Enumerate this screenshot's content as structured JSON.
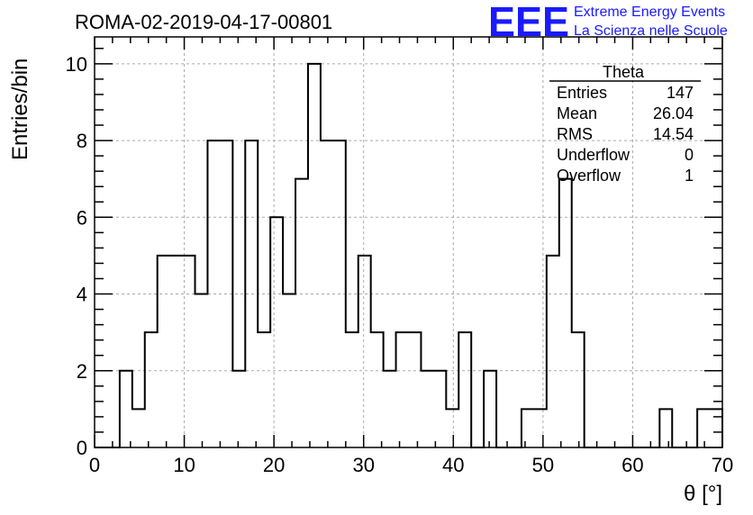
{
  "chart_data": {
    "type": "bar",
    "title": "ROMA-02-2019-04-17-00801",
    "xlabel": "θ [°]",
    "ylabel": "Entries/bin",
    "xlim": [
      0,
      70
    ],
    "ylim": [
      0,
      10.7
    ],
    "bin_width": 1.4,
    "x_ticks": [
      0,
      10,
      20,
      30,
      40,
      50,
      60,
      70
    ],
    "y_ticks": [
      0,
      2,
      4,
      6,
      8,
      10
    ],
    "grid": true,
    "values": [
      0,
      0,
      2,
      1,
      3,
      5,
      5,
      5,
      4,
      8,
      8,
      2,
      8,
      3,
      6,
      4,
      7,
      10,
      8,
      8,
      3,
      5,
      3,
      2,
      3,
      3,
      2,
      2,
      1,
      3,
      0,
      2,
      0,
      0,
      1,
      1,
      5,
      7,
      3,
      0,
      0,
      0,
      0,
      0,
      0,
      1,
      0,
      0,
      1,
      1
    ],
    "stats": {
      "name": "Theta",
      "rows": [
        {
          "label": "Entries",
          "value": "147"
        },
        {
          "label": "Mean",
          "value": "26.04"
        },
        {
          "label": "RMS",
          "value": "14.54"
        },
        {
          "label": "Underflow",
          "value": "0"
        },
        {
          "label": "Overflow",
          "value": "1"
        }
      ],
      "position": "top-right"
    }
  },
  "logo": {
    "mark": "EEE",
    "line1": "Extreme Energy Events",
    "line2": "La Scienza nelle Scuole",
    "color": "#1a1aff"
  }
}
